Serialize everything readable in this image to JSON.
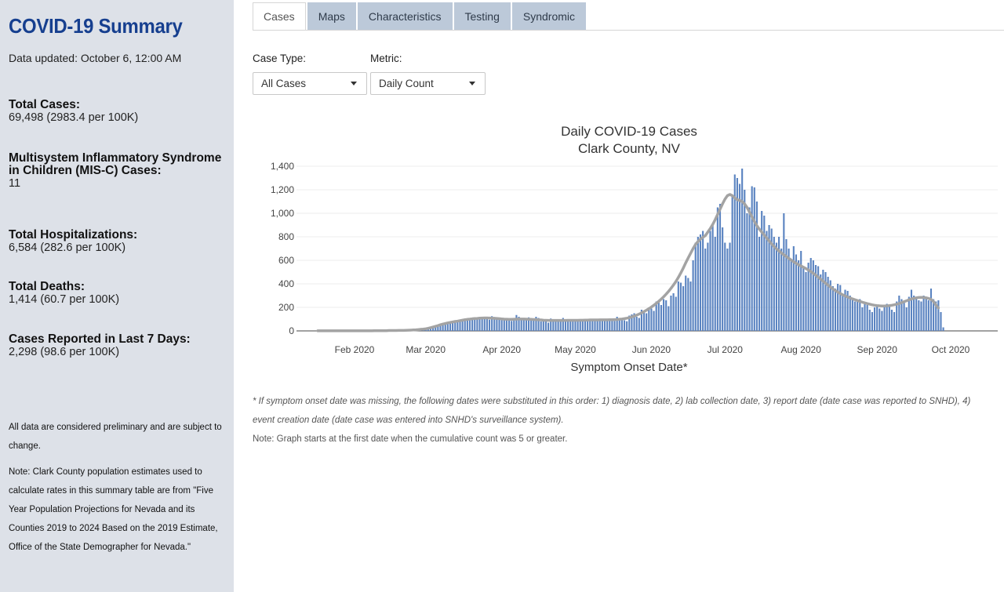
{
  "sidebar": {
    "title": "COVID-19 Summary",
    "updated": "Data updated: October 6, 12:00 AM",
    "stats": [
      {
        "label": "Total Cases:",
        "value": "69,498 (2983.4 per 100K)"
      },
      {
        "label": "Multisystem Inflammatory Syndrome in Children (MIS-C) Cases:",
        "value": "11"
      },
      {
        "label": "Total Hospitalizations:",
        "value": "6,584 (282.6 per 100K)"
      },
      {
        "label": "Total Deaths:",
        "value": "1,414 (60.7 per 100K)"
      },
      {
        "label": "Cases Reported in Last 7 Days:",
        "value": "2,298 (98.6 per 100K)"
      }
    ],
    "note_preliminary": "All data are considered preliminary and are subject to change.",
    "note_population": "Note: Clark County population estimates used to calculate rates in this summary table are from \"Five Year Population Projections for Nevada and its Counties 2019 to 2024 Based on the 2019 Estimate, Office of the State Demographer for Nevada.\""
  },
  "tabs": [
    {
      "label": "Cases",
      "active": true
    },
    {
      "label": "Maps",
      "active": false
    },
    {
      "label": "Characteristics",
      "active": false
    },
    {
      "label": "Testing",
      "active": false
    },
    {
      "label": "Syndromic",
      "active": false
    }
  ],
  "controls": {
    "case_type_label": "Case Type:",
    "case_type_value": "All Cases",
    "metric_label": "Metric:",
    "metric_value": "Daily Count"
  },
  "colors": {
    "accent": "#163f8f",
    "bar": "#5b84c1",
    "avg_line": "#a3a3a3",
    "sidebar_bg": "#dde1e8",
    "tab_bg": "#bcc9d9"
  },
  "chart_data": {
    "type": "bar",
    "title": "Daily COVID-19 Cases",
    "subtitle": "Clark County, NV",
    "xlabel": "Symptom Onset Date*",
    "ylabel": "",
    "ylim": [
      0,
      1400
    ],
    "yticks": [
      "0",
      "200",
      "400",
      "600",
      "800",
      "1,000",
      "1,200",
      "1,400"
    ],
    "xticks": [
      "Feb 2020",
      "Mar 2020",
      "Apr 2020",
      "May 2020",
      "Jun 2020",
      "Jul 2020",
      "Aug 2020",
      "Sep 2020",
      "Oct 2020"
    ],
    "start_date": "2020-01-17",
    "end_date": "2020-10-05",
    "grid": "horizontal",
    "series": [
      {
        "type": "bar",
        "values": [
          1,
          0,
          0,
          1,
          0,
          1,
          0,
          0,
          1,
          0,
          0,
          1,
          1,
          0,
          1,
          0,
          1,
          1,
          0,
          1,
          1,
          2,
          1,
          2,
          2,
          1,
          2,
          3,
          2,
          3,
          3,
          4,
          3,
          4,
          4,
          5,
          6,
          7,
          8,
          9,
          10,
          12,
          14,
          16,
          18,
          22,
          28,
          35,
          42,
          50,
          58,
          62,
          68,
          72,
          75,
          80,
          85,
          82,
          90,
          95,
          100,
          95,
          105,
          110,
          102,
          98,
          110,
          120,
          115,
          105,
          95,
          125,
          118,
          110,
          100,
          90,
          100,
          95,
          100,
          85,
          105,
          135,
          120,
          110,
          100,
          95,
          115,
          100,
          90,
          120,
          110,
          80,
          100,
          95,
          70,
          105,
          90,
          85,
          100,
          95,
          110,
          80,
          85,
          100,
          88,
          95,
          90,
          80,
          95,
          100,
          88,
          95,
          102,
          90,
          95,
          100,
          85,
          90,
          96,
          100,
          95,
          85,
          120,
          100,
          110,
          90,
          82,
          130,
          140,
          150,
          120,
          110,
          180,
          160,
          150,
          200,
          190,
          170,
          250,
          240,
          220,
          270,
          260,
          210,
          300,
          320,
          290,
          420,
          410,
          380,
          470,
          450,
          420,
          600,
          750,
          800,
          820,
          850,
          700,
          750,
          850,
          900,
          800,
          1050,
          1080,
          880,
          750,
          700,
          750,
          1150,
          1330,
          1300,
          1250,
          1380,
          1200,
          1000,
          1050,
          1230,
          1220,
          1100,
          800,
          1020,
          980,
          850,
          900,
          870,
          800,
          750,
          800,
          700,
          1000,
          780,
          700,
          600,
          720,
          650,
          600,
          680,
          550,
          500,
          580,
          620,
          600,
          560,
          550,
          480,
          520,
          500,
          460,
          430,
          380,
          360,
          400,
          390,
          300,
          350,
          340,
          300,
          280,
          250,
          260,
          270,
          200,
          240,
          220,
          180,
          160,
          200,
          220,
          190,
          170,
          200,
          230,
          210,
          180,
          160,
          250,
          300,
          270,
          250,
          200,
          290,
          350,
          300,
          280,
          260,
          250,
          300,
          280,
          260,
          360,
          270,
          250,
          260,
          160,
          30
        ],
        "moving_average": [
          1,
          1,
          1,
          1,
          1,
          1,
          1,
          1,
          1,
          1,
          1,
          1,
          1,
          1,
          1,
          1,
          1,
          1,
          1,
          1,
          1,
          1,
          1,
          2,
          2,
          2,
          2,
          2,
          2,
          3,
          3,
          3,
          3,
          4,
          4,
          4,
          5,
          6,
          7,
          8,
          9,
          11,
          13,
          15,
          18,
          22,
          27,
          33,
          39,
          45,
          52,
          58,
          63,
          68,
          72,
          76,
          80,
          83,
          87,
          91,
          95,
          98,
          100,
          103,
          105,
          106,
          108,
          109,
          110,
          110,
          109,
          108,
          107,
          106,
          104,
          102,
          100,
          99,
          98,
          98,
          99,
          100,
          101,
          101,
          101,
          100,
          99,
          98,
          97,
          96,
          94,
          93,
          91,
          90,
          89,
          89,
          89,
          89,
          89,
          89,
          89,
          89,
          90,
          90,
          90,
          90,
          90,
          91,
          91,
          92,
          92,
          93,
          93,
          93,
          93,
          94,
          94,
          94,
          94,
          95,
          95,
          96,
          97,
          99,
          101,
          104,
          108,
          113,
          119,
          126,
          134,
          143,
          153,
          164,
          176,
          189,
          203,
          218,
          234,
          251,
          270,
          290,
          312,
          336,
          362,
          390,
          420,
          455,
          493,
          534,
          578,
          620,
          660,
          700,
          735,
          760,
          780,
          795,
          810,
          840,
          870,
          905,
          945,
          990,
          1035,
          1080,
          1120,
          1150,
          1160,
          1150,
          1130,
          1115,
          1110,
          1100,
          1080,
          1050,
          1010,
          970,
          930,
          895,
          865,
          840,
          815,
          790,
          765,
          740,
          718,
          698,
          680,
          663,
          647,
          632,
          617,
          602,
          588,
          575,
          563,
          552,
          541,
          530,
          518,
          505,
          490,
          474,
          457,
          440,
          423,
          406,
          389,
          372,
          357,
          343,
          330,
          318,
          307,
          297,
          288,
          280,
          272,
          265,
          258,
          251,
          244,
          238,
          232,
          227,
          222,
          218,
          215,
          213,
          212,
          212,
          213,
          215,
          218,
          222,
          227,
          233,
          240,
          248,
          256,
          264,
          271,
          277,
          281,
          284,
          285,
          284,
          281,
          276,
          268,
          250,
          220,
          195
        ]
      }
    ],
    "footnote_asterisk": "* If symptom onset date was missing, the following dates were substituted in this order: 1) diagnosis date, 2) lab collection date, 3) report date (date case was reported to SNHD), 4) event creation date (date case was entered into SNHD's surveillance system).",
    "footnote_start": "Note: Graph starts at the first date when the cumulative count was 5 or greater."
  }
}
